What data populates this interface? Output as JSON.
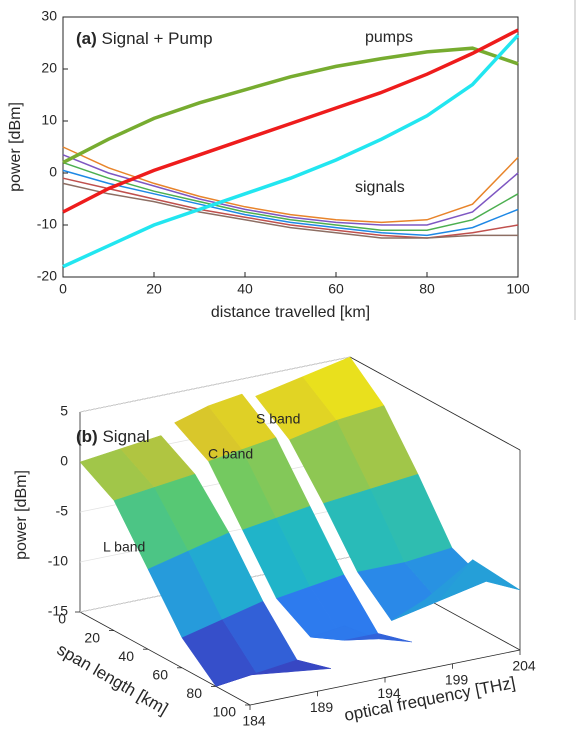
{
  "chart_data": [
    {
      "type": "line",
      "panel": "(a)",
      "title": "Signal + Pump",
      "xlabel": "distance travelled [km]",
      "ylabel": "power [dBm]",
      "x": [
        0,
        10,
        20,
        30,
        40,
        50,
        60,
        70,
        80,
        90,
        100
      ],
      "xlim": [
        0,
        100
      ],
      "xticks": [
        0,
        20,
        40,
        60,
        80,
        100
      ],
      "ylim": [
        -20,
        30
      ],
      "yticks": [
        -20,
        -10,
        0,
        10,
        20,
        30
      ],
      "annotations": [
        "pumps",
        "signals"
      ],
      "series": [
        {
          "color": "#e8842a",
          "values": [
            5,
            1,
            -2,
            -4.5,
            -6.5,
            -8,
            -9,
            -9.5,
            -9,
            -6,
            3
          ]
        },
        {
          "color": "#7e57c2",
          "values": [
            3.5,
            0,
            -2.5,
            -5,
            -7,
            -8.5,
            -9.5,
            -10,
            -10,
            -7.5,
            0
          ]
        },
        {
          "color": "#4caf50",
          "values": [
            2,
            -1,
            -3.5,
            -5.5,
            -7.5,
            -9,
            -10,
            -11,
            -11,
            -9,
            -4
          ]
        },
        {
          "color": "#1e88e5",
          "values": [
            0.5,
            -2,
            -4,
            -6,
            -8,
            -9.5,
            -10.5,
            -11.5,
            -12,
            -10.5,
            -7
          ]
        },
        {
          "color": "#c0504d",
          "values": [
            -1,
            -3,
            -5,
            -7,
            -8.5,
            -10,
            -11,
            -12,
            -12.5,
            -11.5,
            -10
          ]
        },
        {
          "color": "#8d6e63",
          "values": [
            -2,
            -4,
            -5.5,
            -7.5,
            -9,
            -10.5,
            -11.5,
            -12.5,
            -12.5,
            -12,
            -12
          ]
        },
        {
          "color": "#77ac30",
          "values": [
            2,
            6.5,
            10.5,
            13.5,
            16,
            18.5,
            20.5,
            22,
            23.3,
            24,
            21
          ]
        },
        {
          "color": "#ee1c1c",
          "values": [
            -7.5,
            -3,
            0.5,
            3.5,
            6.5,
            9.5,
            12.5,
            15.5,
            19,
            23,
            27.5
          ]
        },
        {
          "color": "#22e6f0",
          "values": [
            -18,
            -14,
            -10,
            -7,
            -4,
            -1,
            2.5,
            6.5,
            11,
            17,
            26.5
          ]
        }
      ]
    },
    {
      "type": "surface",
      "panel": "(b)",
      "title": "Signal",
      "xlabel": "optical frequency [THz]",
      "ylabel": "span length [km]",
      "zlabel": "power [dBm]",
      "xlim": [
        184,
        204
      ],
      "xticks": [
        184,
        189,
        194,
        199,
        204
      ],
      "ylim": [
        0,
        100
      ],
      "yticks": [
        0,
        20,
        40,
        60,
        80,
        100
      ],
      "zlim": [
        -15,
        5
      ],
      "zticks": [
        -15,
        -10,
        -5,
        0,
        5
      ],
      "colormap": [
        "#3e26a8",
        "#2c7ef0",
        "#1fb8c6",
        "#5dca6c",
        "#d6c22e",
        "#f9fb0e"
      ],
      "y": [
        0,
        20,
        40,
        60,
        80,
        100
      ],
      "series": [
        {
          "name": "L band",
          "x": [
            184,
            187,
            190
          ],
          "z": [
            [
              0,
              0.5,
              1
            ],
            [
              -2,
              -1.5,
              -1
            ],
            [
              -7,
              -6,
              -5
            ],
            [
              -12,
              -11,
              -10
            ],
            [
              -15,
              -14.5,
              -14
            ],
            [
              -12,
              -12.5,
              -13
            ]
          ]
        },
        {
          "name": "C band",
          "x": [
            191,
            193.5,
            196
          ],
          "z": [
            [
              2,
              3,
              3.5
            ],
            [
              0,
              0.5,
              1
            ],
            [
              -5,
              -4.5,
              -4
            ],
            [
              -10,
              -9.5,
              -9
            ],
            [
              -12,
              -13,
              -13
            ],
            [
              -9,
              -11,
              -12
            ]
          ]
        },
        {
          "name": "S band",
          "x": [
            197,
            200.5,
            204
          ],
          "z": [
            [
              3,
              4,
              5
            ],
            [
              0.5,
              1.5,
              2
            ],
            [
              -4,
              -3.5,
              -3
            ],
            [
              -9,
              -9,
              -8.5
            ],
            [
              -12,
              -11,
              -10
            ],
            [
              -8,
              -5,
              -9
            ]
          ]
        }
      ]
    }
  ]
}
